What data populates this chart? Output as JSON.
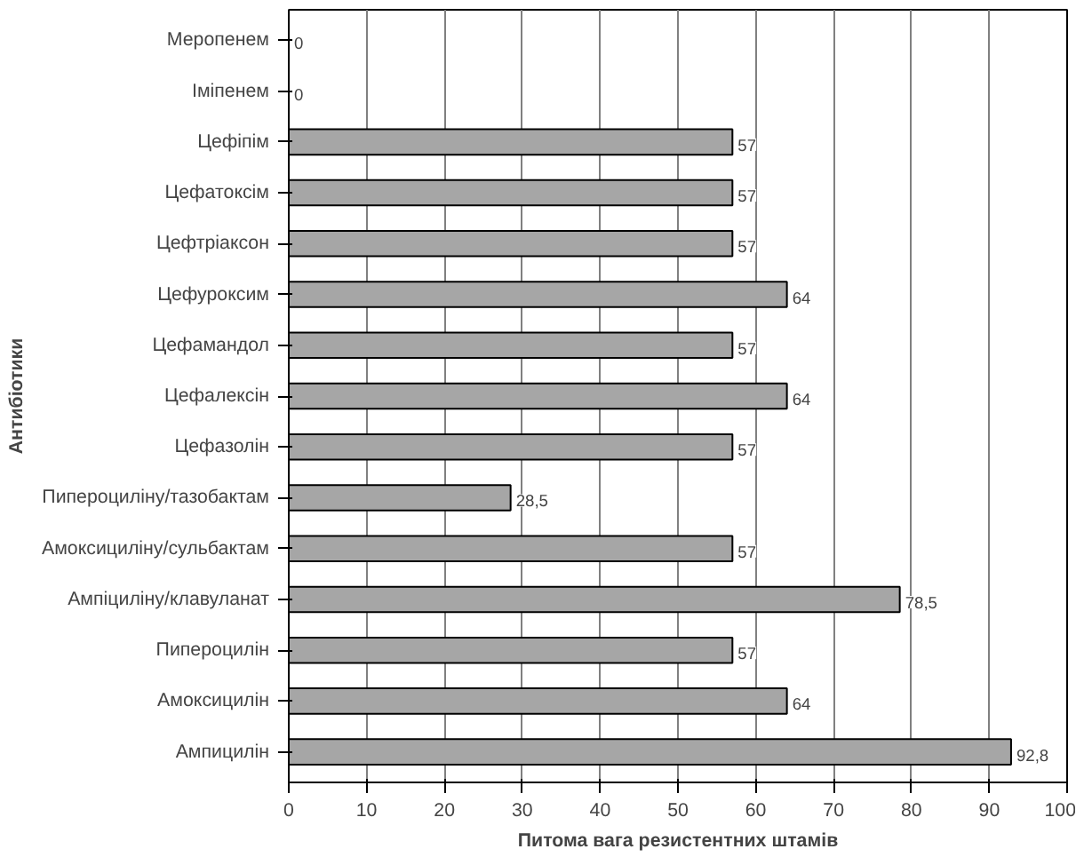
{
  "chart_data": {
    "type": "bar",
    "orientation": "horizontal",
    "xlabel": "Питома вага резистентних штамів",
    "ylabel": "Антибіотики",
    "categories": [
      "Меропенем",
      "Іміпенем",
      "Цефіпім",
      "Цефатоксім",
      "Цефтріаксон",
      "Цефуроксим",
      "Цефамандол",
      "Цефалексін",
      "Цефазолін",
      "Пипероциліну/тазобактам",
      "Амоксициліну/сульбактам",
      "Ампіциліну/клавуланат",
      "Пипероцилін",
      "Амоксицилін",
      "Ампицилін"
    ],
    "values": [
      0,
      0,
      57,
      57,
      57,
      64,
      57,
      64,
      57,
      28.5,
      57,
      78.5,
      57,
      64,
      92.8
    ],
    "value_labels": [
      "0",
      "0",
      "57",
      "57",
      "57",
      "64",
      "57",
      "64",
      "57",
      "28,5",
      "57",
      "78,5",
      "57",
      "64",
      "92,8"
    ],
    "color": "#a6a6a6",
    "xlim": [
      0,
      100
    ],
    "xticks": [
      0,
      10,
      20,
      30,
      40,
      50,
      60,
      70,
      80,
      90,
      100
    ],
    "grid": "x"
  }
}
